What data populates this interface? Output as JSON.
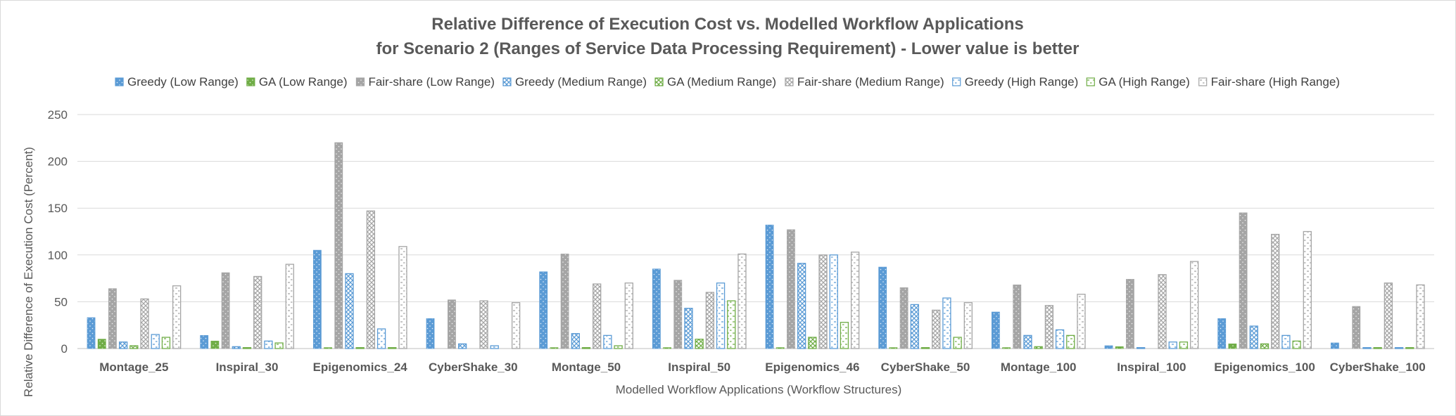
{
  "chart_data": {
    "type": "bar",
    "title": "Relative Difference of Execution Cost vs. Modelled Workflow Applications",
    "subtitle": "for Scenario 2 (Ranges of Service Data Processing Requirement) - Lower value is better",
    "xlabel": "Modelled Workflow Applications (Workflow Structures)",
    "ylabel": "Relative Difference of Execution Cost (Percent)",
    "ylim": [
      0,
      250
    ],
    "yticks": [
      "0",
      "50",
      "100",
      "150",
      "200",
      "250"
    ],
    "grid": true,
    "legend_position": "top",
    "categories": [
      "Montage_25",
      "Inspiral_30",
      "Epigenomics_24",
      "CyberShake_30",
      "Montage_50",
      "Inspiral_50",
      "Epigenomics_46",
      "CyberShake_50",
      "Montage_100",
      "Inspiral_100",
      "Epigenomics_100",
      "CyberShake_100"
    ],
    "series": [
      {
        "name": "Greedy (Low Range)",
        "color": "#5B9BD5",
        "pattern": "solid-dots",
        "values": [
          33,
          14,
          105,
          32,
          82,
          85,
          132,
          87,
          39,
          3,
          32,
          6
        ]
      },
      {
        "name": "GA (Low Range)",
        "color": "#70AD47",
        "pattern": "solid-dots",
        "values": [
          10,
          8,
          1,
          0,
          1,
          1,
          1,
          1,
          1,
          2,
          5,
          0
        ]
      },
      {
        "name": "Fair-share (Low Range)",
        "color": "#A5A5A5",
        "pattern": "solid-dots",
        "values": [
          64,
          81,
          220,
          52,
          101,
          73,
          127,
          65,
          68,
          74,
          145,
          45
        ]
      },
      {
        "name": "Greedy (Medium Range)",
        "color": "#5B9BD5",
        "pattern": "crosshatch",
        "values": [
          7,
          2,
          80,
          5,
          16,
          43,
          91,
          47,
          14,
          1,
          24,
          1
        ]
      },
      {
        "name": "GA (Medium Range)",
        "color": "#70AD47",
        "pattern": "crosshatch",
        "values": [
          3,
          1,
          1,
          0,
          1,
          10,
          12,
          1,
          2,
          0,
          5,
          1
        ]
      },
      {
        "name": "Fair-share (Medium Range)",
        "color": "#A5A5A5",
        "pattern": "crosshatch",
        "values": [
          53,
          77,
          147,
          51,
          69,
          60,
          100,
          41,
          46,
          79,
          122,
          70
        ]
      },
      {
        "name": "Greedy (High Range)",
        "color": "#5B9BD5",
        "pattern": "dashed",
        "values": [
          15,
          8,
          21,
          3,
          14,
          70,
          100,
          54,
          20,
          7,
          14,
          1
        ]
      },
      {
        "name": "GA (High Range)",
        "color": "#70AD47",
        "pattern": "dashed",
        "values": [
          12,
          6,
          1,
          0,
          3,
          51,
          28,
          12,
          14,
          7,
          8,
          1
        ]
      },
      {
        "name": "Fair-share (High Range)",
        "color": "#A5A5A5",
        "pattern": "dashed",
        "values": [
          67,
          90,
          109,
          49,
          70,
          101,
          103,
          49,
          58,
          93,
          125,
          68
        ]
      }
    ]
  }
}
